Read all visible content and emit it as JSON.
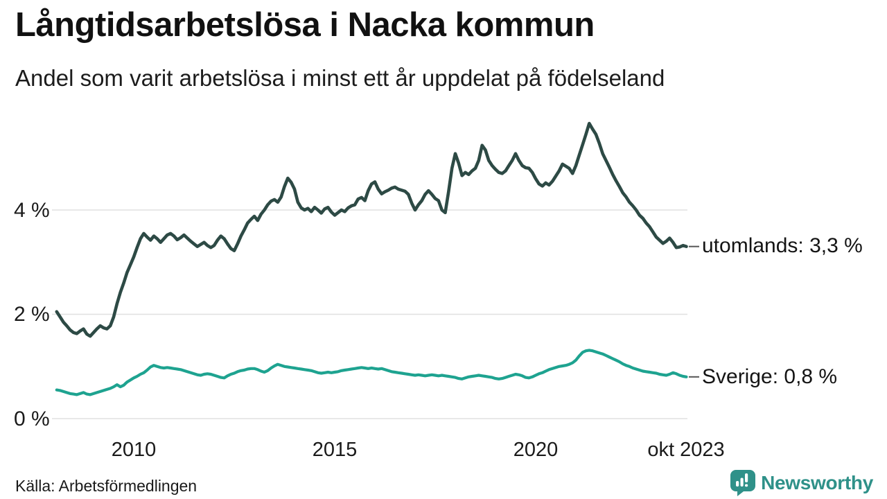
{
  "header": {
    "title": "Långtidsarbetslösa i Nacka kommun",
    "subtitle": "Andel som varit arbetslösa i minst ett år uppdelat på födelseland"
  },
  "footer": {
    "source": "Källa: Arbetsförmedlingen",
    "logo_text": "Newsworthy",
    "logo_color": "#2f9189"
  },
  "chart_data": {
    "type": "line",
    "title": "Långtidsarbetslösa i Nacka kommun",
    "subtitle": "Andel som varit arbetslösa i minst ett år uppdelat på födelseland",
    "x_unit": "month",
    "x_start": "2008-02",
    "x_end": "2023-10",
    "ylim": [
      0,
      5.8
    ],
    "grid": "horizontal",
    "grid_color": "#e0e0e0",
    "tick_color": "#555555",
    "legend_position": "right-end-labels",
    "y_ticks": [
      {
        "value": 0,
        "label": "0 %"
      },
      {
        "value": 2,
        "label": "2 %"
      },
      {
        "value": 4,
        "label": "4 %"
      }
    ],
    "x_ticks": [
      {
        "year": 2010,
        "label": "2010"
      },
      {
        "year": 2015,
        "label": "2015"
      },
      {
        "year": 2020,
        "label": "2020"
      },
      {
        "year": 2023.75,
        "label": "okt 2023"
      }
    ],
    "series": [
      {
        "name": "utomlands",
        "end_label": "utomlands: 3,3 %",
        "end_value_display": "3,3 %",
        "color": "#2d4a45",
        "stroke_width": 4.6,
        "values": [
          2.05,
          1.95,
          1.85,
          1.78,
          1.7,
          1.65,
          1.63,
          1.68,
          1.72,
          1.62,
          1.58,
          1.65,
          1.72,
          1.78,
          1.74,
          1.72,
          1.78,
          1.95,
          2.2,
          2.42,
          2.6,
          2.8,
          2.95,
          3.1,
          3.28,
          3.45,
          3.55,
          3.48,
          3.42,
          3.5,
          3.45,
          3.38,
          3.45,
          3.52,
          3.55,
          3.5,
          3.43,
          3.47,
          3.52,
          3.46,
          3.4,
          3.35,
          3.3,
          3.34,
          3.38,
          3.32,
          3.28,
          3.32,
          3.42,
          3.5,
          3.45,
          3.35,
          3.26,
          3.22,
          3.35,
          3.5,
          3.62,
          3.75,
          3.82,
          3.88,
          3.8,
          3.92,
          4.0,
          4.1,
          4.17,
          4.2,
          4.15,
          4.25,
          4.45,
          4.61,
          4.53,
          4.4,
          4.15,
          4.04,
          4.0,
          4.03,
          3.97,
          4.05,
          4.0,
          3.94,
          4.02,
          4.05,
          3.96,
          3.9,
          3.95,
          4.0,
          3.97,
          4.04,
          4.08,
          4.1,
          4.21,
          4.24,
          4.18,
          4.37,
          4.5,
          4.54,
          4.4,
          4.31,
          4.35,
          4.38,
          4.42,
          4.44,
          4.4,
          4.38,
          4.36,
          4.3,
          4.13,
          4.0,
          4.1,
          4.18,
          4.3,
          4.37,
          4.3,
          4.22,
          4.18,
          4.0,
          3.95,
          4.35,
          4.8,
          5.08,
          4.9,
          4.66,
          4.72,
          4.68,
          4.75,
          4.8,
          4.95,
          5.24,
          5.15,
          4.95,
          4.85,
          4.78,
          4.72,
          4.7,
          4.75,
          4.85,
          4.95,
          5.08,
          4.95,
          4.85,
          4.81,
          4.8,
          4.72,
          4.6,
          4.5,
          4.46,
          4.52,
          4.48,
          4.55,
          4.65,
          4.75,
          4.88,
          4.84,
          4.8,
          4.7,
          4.85,
          5.05,
          5.25,
          5.45,
          5.66,
          5.55,
          5.45,
          5.28,
          5.08,
          4.95,
          4.82,
          4.68,
          4.56,
          4.45,
          4.33,
          4.25,
          4.15,
          4.08,
          4.0,
          3.9,
          3.84,
          3.75,
          3.68,
          3.58,
          3.48,
          3.42,
          3.36,
          3.4,
          3.46,
          3.38,
          3.28,
          3.29,
          3.32,
          3.3
        ]
      },
      {
        "name": "Sverige",
        "end_label": "Sverige: 0,8 %",
        "end_value_display": "0,8 %",
        "color": "#1ea390",
        "stroke_width": 4.2,
        "values": [
          0.55,
          0.54,
          0.52,
          0.5,
          0.48,
          0.47,
          0.46,
          0.48,
          0.5,
          0.47,
          0.46,
          0.48,
          0.5,
          0.52,
          0.54,
          0.56,
          0.58,
          0.61,
          0.65,
          0.61,
          0.64,
          0.7,
          0.74,
          0.78,
          0.81,
          0.85,
          0.88,
          0.93,
          0.99,
          1.02,
          1.0,
          0.98,
          0.97,
          0.98,
          0.97,
          0.96,
          0.95,
          0.94,
          0.92,
          0.9,
          0.88,
          0.86,
          0.84,
          0.83,
          0.85,
          0.86,
          0.85,
          0.83,
          0.81,
          0.79,
          0.78,
          0.82,
          0.85,
          0.87,
          0.9,
          0.92,
          0.93,
          0.95,
          0.96,
          0.96,
          0.94,
          0.91,
          0.89,
          0.92,
          0.97,
          1.01,
          1.04,
          1.02,
          1.0,
          0.99,
          0.98,
          0.97,
          0.96,
          0.95,
          0.94,
          0.93,
          0.92,
          0.9,
          0.88,
          0.87,
          0.88,
          0.89,
          0.88,
          0.89,
          0.9,
          0.92,
          0.93,
          0.94,
          0.95,
          0.96,
          0.97,
          0.98,
          0.97,
          0.96,
          0.97,
          0.96,
          0.95,
          0.96,
          0.94,
          0.92,
          0.9,
          0.89,
          0.88,
          0.87,
          0.86,
          0.85,
          0.84,
          0.83,
          0.84,
          0.83,
          0.82,
          0.83,
          0.84,
          0.83,
          0.82,
          0.83,
          0.82,
          0.81,
          0.8,
          0.79,
          0.77,
          0.76,
          0.78,
          0.8,
          0.81,
          0.82,
          0.83,
          0.82,
          0.81,
          0.8,
          0.79,
          0.77,
          0.76,
          0.77,
          0.79,
          0.81,
          0.83,
          0.85,
          0.84,
          0.82,
          0.79,
          0.78,
          0.8,
          0.83,
          0.86,
          0.88,
          0.91,
          0.94,
          0.96,
          0.98,
          1.0,
          1.01,
          1.02,
          1.04,
          1.07,
          1.12,
          1.2,
          1.27,
          1.3,
          1.31,
          1.3,
          1.28,
          1.26,
          1.24,
          1.21,
          1.18,
          1.15,
          1.12,
          1.09,
          1.05,
          1.02,
          1.0,
          0.97,
          0.95,
          0.93,
          0.91,
          0.9,
          0.89,
          0.88,
          0.87,
          0.85,
          0.84,
          0.83,
          0.85,
          0.88,
          0.86,
          0.83,
          0.81,
          0.8
        ]
      }
    ]
  }
}
